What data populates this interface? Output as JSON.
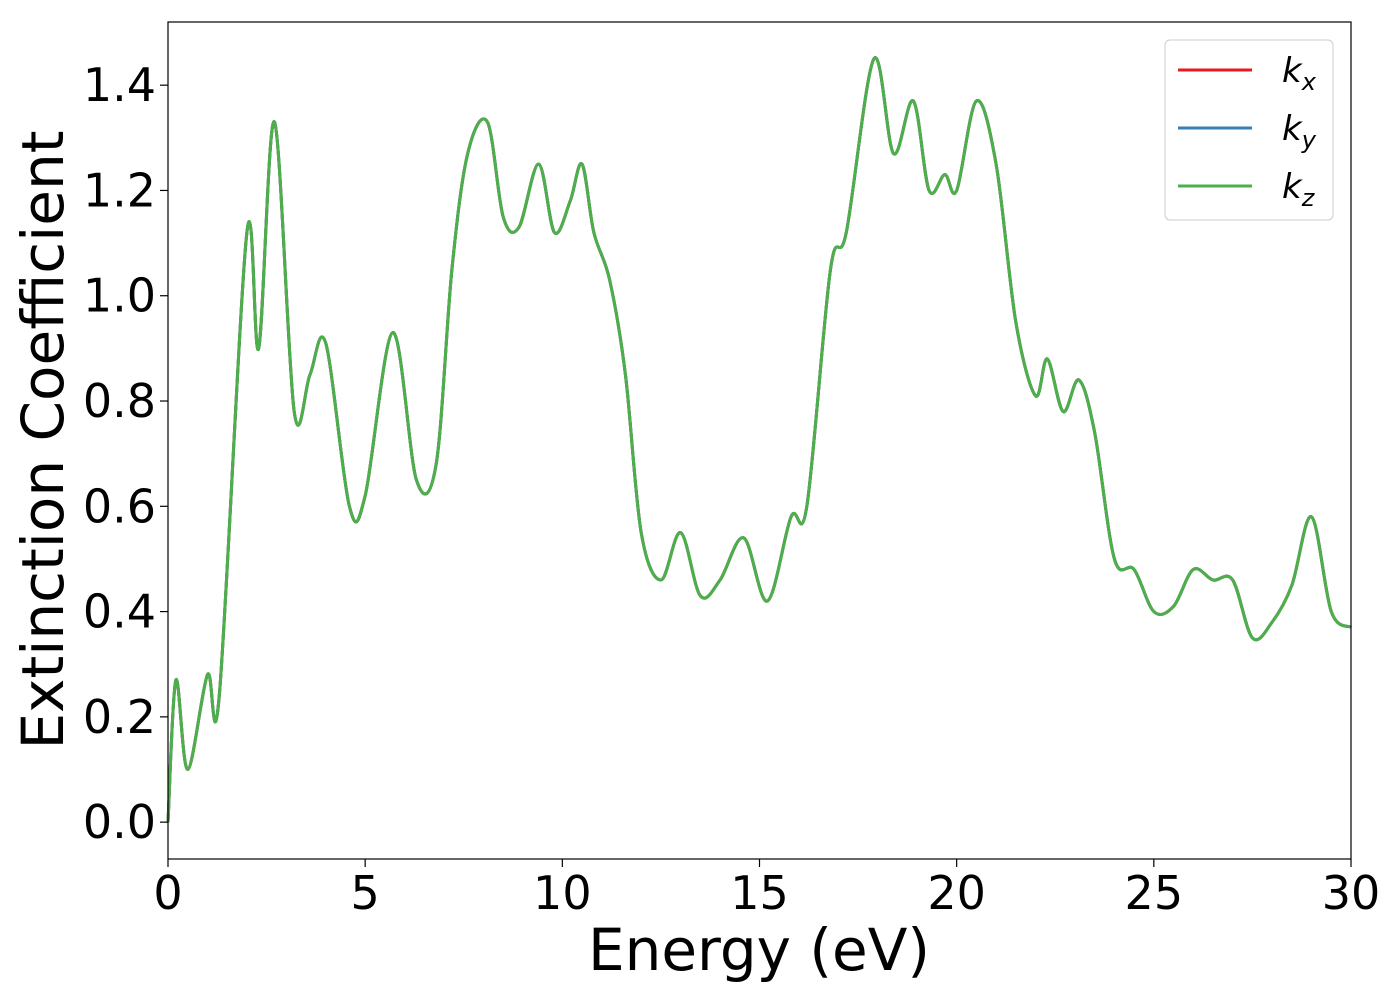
{
  "chart_data": {
    "type": "line",
    "title": "",
    "xlabel": "Energy (eV)",
    "ylabel": "Extinction Coefficient",
    "xlim": [
      0,
      30
    ],
    "ylim": [
      -0.07,
      1.52
    ],
    "xticks": [
      0,
      5,
      10,
      15,
      20,
      25,
      30
    ],
    "xtick_labels": [
      "0",
      "5",
      "10",
      "15",
      "20",
      "25",
      "30"
    ],
    "yticks": [
      0.0,
      0.2,
      0.4,
      0.6,
      0.8,
      1.0,
      1.2,
      1.4
    ],
    "ytick_labels": [
      "0.0",
      "0.2",
      "0.4",
      "0.6",
      "0.8",
      "1.0",
      "1.2",
      "1.4"
    ],
    "grid": false,
    "legend_position": "top-right",
    "series": [
      {
        "name": "k_x",
        "legend_base": "k",
        "legend_sub": "x",
        "color": "#e41a1c",
        "x": [
          0,
          0.2,
          0.5,
          1.0,
          1.3,
          2.0,
          2.3,
          2.7,
          3.2,
          3.6,
          4.0,
          4.6,
          5.0,
          5.7,
          6.3,
          6.8,
          7.2,
          7.6,
          8.1,
          8.5,
          8.9,
          9.4,
          9.8,
          10.2,
          10.5,
          10.8,
          11.2,
          11.6,
          12.0,
          12.5,
          13.0,
          13.5,
          14.0,
          14.6,
          15.2,
          15.8,
          16.2,
          16.8,
          17.2,
          17.9,
          18.4,
          18.9,
          19.3,
          19.7,
          20.0,
          20.5,
          21.0,
          21.5,
          22.0,
          22.3,
          22.7,
          23.1,
          23.5,
          24.0,
          24.5,
          25.0,
          25.5,
          26.0,
          26.5,
          27.0,
          27.5,
          28.0,
          28.5,
          29.0,
          29.5,
          30.0
        ],
        "y": [
          0.0,
          0.27,
          0.1,
          0.28,
          0.24,
          1.12,
          0.9,
          1.33,
          0.78,
          0.85,
          0.91,
          0.6,
          0.62,
          0.93,
          0.65,
          0.68,
          1.05,
          1.27,
          1.33,
          1.15,
          1.13,
          1.25,
          1.12,
          1.18,
          1.25,
          1.12,
          1.03,
          0.85,
          0.55,
          0.46,
          0.55,
          0.43,
          0.46,
          0.54,
          0.42,
          0.58,
          0.6,
          1.05,
          1.12,
          1.45,
          1.27,
          1.37,
          1.2,
          1.23,
          1.2,
          1.37,
          1.25,
          0.95,
          0.81,
          0.88,
          0.78,
          0.84,
          0.74,
          0.5,
          0.48,
          0.4,
          0.41,
          0.48,
          0.46,
          0.46,
          0.35,
          0.38,
          0.45,
          0.58,
          0.4,
          0.37
        ]
      },
      {
        "name": "k_y",
        "legend_base": "k",
        "legend_sub": "y",
        "color": "#377eb8",
        "x": [
          0,
          0.2,
          0.5,
          1.0,
          1.3,
          2.0,
          2.3,
          2.7,
          3.2,
          3.6,
          4.0,
          4.6,
          5.0,
          5.7,
          6.3,
          6.8,
          7.2,
          7.6,
          8.1,
          8.5,
          8.9,
          9.4,
          9.8,
          10.2,
          10.5,
          10.8,
          11.2,
          11.6,
          12.0,
          12.5,
          13.0,
          13.5,
          14.0,
          14.6,
          15.2,
          15.8,
          16.2,
          16.8,
          17.2,
          17.9,
          18.4,
          18.9,
          19.3,
          19.7,
          20.0,
          20.5,
          21.0,
          21.5,
          22.0,
          22.3,
          22.7,
          23.1,
          23.5,
          24.0,
          24.5,
          25.0,
          25.5,
          26.0,
          26.5,
          27.0,
          27.5,
          28.0,
          28.5,
          29.0,
          29.5,
          30.0
        ],
        "y": [
          0.0,
          0.27,
          0.1,
          0.28,
          0.24,
          1.12,
          0.9,
          1.33,
          0.78,
          0.85,
          0.91,
          0.6,
          0.62,
          0.93,
          0.65,
          0.68,
          1.05,
          1.27,
          1.33,
          1.15,
          1.13,
          1.25,
          1.12,
          1.18,
          1.25,
          1.12,
          1.03,
          0.85,
          0.55,
          0.46,
          0.55,
          0.43,
          0.46,
          0.54,
          0.42,
          0.58,
          0.6,
          1.05,
          1.12,
          1.45,
          1.27,
          1.37,
          1.2,
          1.23,
          1.2,
          1.37,
          1.25,
          0.95,
          0.81,
          0.88,
          0.78,
          0.84,
          0.74,
          0.5,
          0.48,
          0.4,
          0.41,
          0.48,
          0.46,
          0.46,
          0.35,
          0.38,
          0.45,
          0.58,
          0.4,
          0.37
        ]
      },
      {
        "name": "k_z",
        "legend_base": "k",
        "legend_sub": "z",
        "color": "#4daf4a",
        "x": [
          0,
          0.2,
          0.5,
          1.0,
          1.3,
          2.0,
          2.3,
          2.7,
          3.2,
          3.6,
          4.0,
          4.6,
          5.0,
          5.7,
          6.3,
          6.8,
          7.2,
          7.6,
          8.1,
          8.5,
          8.9,
          9.4,
          9.8,
          10.2,
          10.5,
          10.8,
          11.2,
          11.6,
          12.0,
          12.5,
          13.0,
          13.5,
          14.0,
          14.6,
          15.2,
          15.8,
          16.2,
          16.8,
          17.2,
          17.9,
          18.4,
          18.9,
          19.3,
          19.7,
          20.0,
          20.5,
          21.0,
          21.5,
          22.0,
          22.3,
          22.7,
          23.1,
          23.5,
          24.0,
          24.5,
          25.0,
          25.5,
          26.0,
          26.5,
          27.0,
          27.5,
          28.0,
          28.5,
          29.0,
          29.5,
          30.0
        ],
        "y": [
          0.0,
          0.27,
          0.1,
          0.28,
          0.24,
          1.12,
          0.9,
          1.33,
          0.78,
          0.85,
          0.91,
          0.6,
          0.62,
          0.93,
          0.65,
          0.68,
          1.05,
          1.27,
          1.33,
          1.15,
          1.13,
          1.25,
          1.12,
          1.18,
          1.25,
          1.12,
          1.03,
          0.85,
          0.55,
          0.46,
          0.55,
          0.43,
          0.46,
          0.54,
          0.42,
          0.58,
          0.6,
          1.05,
          1.12,
          1.45,
          1.27,
          1.37,
          1.2,
          1.23,
          1.2,
          1.37,
          1.25,
          0.95,
          0.81,
          0.88,
          0.78,
          0.84,
          0.74,
          0.5,
          0.48,
          0.4,
          0.41,
          0.48,
          0.46,
          0.46,
          0.35,
          0.38,
          0.45,
          0.58,
          0.4,
          0.37
        ]
      }
    ]
  }
}
